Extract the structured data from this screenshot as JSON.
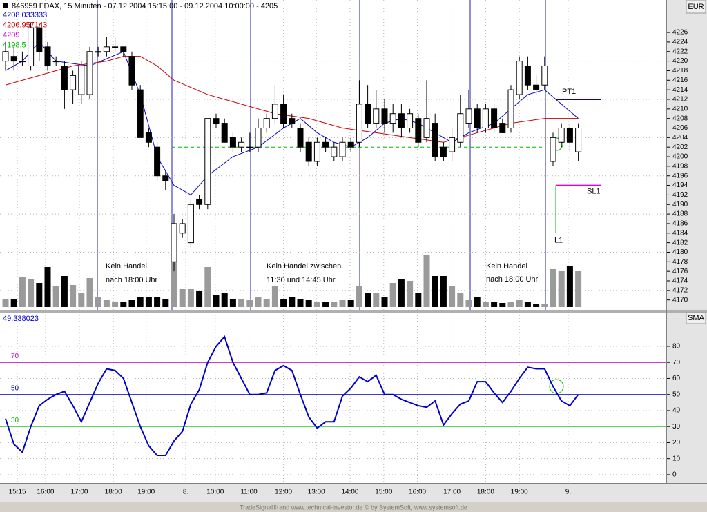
{
  "footer": "TradeSignal® and www.technical-investor.de © by SystemSoft, www.systemsoft.de",
  "chart_data": [
    {
      "type": "candlestick",
      "title": "846959 FDAX, 15 Minuten - 07.12.2004 15:15:00 - 09.12.2004 10:00:00 - 4205",
      "axis_label": "EUR",
      "info": [
        {
          "label": "4208.033333",
          "color": "#0000cc"
        },
        {
          "label": "4206.957143",
          "color": "#cc0000"
        },
        {
          "label": "4209",
          "color": "#cc00cc"
        },
        {
          "label": "4198.5",
          "color": "#00bb00"
        }
      ],
      "annotations": [
        "Kein Handel",
        "nach 18:00 Uhr",
        "Kein Handel zwischen",
        "11:30 und 14:45 Uhr",
        "Kein Handel",
        "nach 18:00 Uhr"
      ],
      "open": [
        4220,
        4221,
        4220,
        4219,
        4227,
        4223,
        4220,
        4219,
        4214,
        4213,
        4213,
        4222,
        4222,
        4223,
        4223,
        4221,
        4214,
        4205,
        4202,
        4196,
        4178,
        4184,
        4182,
        4191,
        4190,
        4208,
        4207,
        4204,
        4202,
        4202,
        4202,
        4206,
        4208,
        4211,
        4208,
        4206,
        4203,
        4199,
        4203,
        4200,
        4200,
        4203,
        4203,
        4211,
        4207,
        4210,
        4207,
        4209,
        4206,
        4208,
        4204,
        4207,
        4202,
        4201,
        4203,
        4207,
        4210,
        4206,
        4210,
        4207,
        4206,
        4213,
        4219,
        4215,
        4215,
        4199,
        4203,
        4206,
        4201
      ],
      "high": [
        4224,
        4223,
        4222,
        4228,
        4228,
        4224,
        4221,
        4220,
        4218,
        4220,
        4223,
        4223,
        4225,
        4225,
        4223,
        4222,
        4215,
        4206,
        4203,
        4197,
        4188,
        4187,
        4191,
        4192,
        4208,
        4209,
        4208,
        4205,
        4204,
        4205,
        4208,
        4209,
        4215,
        4213,
        4209,
        4207,
        4204,
        4204,
        4204,
        4203,
        4204,
        4204,
        4216,
        4215,
        4214,
        4212,
        4211,
        4211,
        4210,
        4209,
        4216,
        4209,
        4203,
        4206,
        4213,
        4214,
        4211,
        4211,
        4211,
        4208,
        4215,
        4221,
        4221,
        4217,
        4221,
        4205,
        4207,
        4207,
        4207
      ],
      "low": [
        4218,
        4218,
        4219,
        4218,
        4220,
        4218,
        4219,
        4210,
        4211,
        4211,
        4212,
        4221,
        4221,
        4222,
        4221,
        4214,
        4204,
        4202,
        4195,
        4193,
        4176,
        4183,
        4181,
        4189,
        4189,
        4206,
        4203,
        4201,
        4201,
        4201,
        4201,
        4205,
        4207,
        4206,
        4206,
        4201,
        4198,
        4198,
        4201,
        4199,
        4199,
        4201,
        4202,
        4206,
        4206,
        4205,
        4205,
        4204,
        4205,
        4202,
        4203,
        4199,
        4199,
        4199,
        4202,
        4206,
        4205,
        4205,
        4205,
        4205,
        4205,
        4212,
        4214,
        4213,
        4214,
        4198,
        4202,
        4201,
        4199
      ],
      "close": [
        4222,
        4220,
        4220,
        4227,
        4222,
        4219,
        4220,
        4214,
        4217,
        4219,
        4222,
        4222,
        4223,
        4223,
        4222,
        4215,
        4204,
        4203,
        4196,
        4195,
        4186,
        4186,
        4190,
        4190,
        4208,
        4207,
        4203,
        4202,
        4203,
        4202,
        4206,
        4208,
        4211,
        4207,
        4207,
        4202,
        4199,
        4203,
        4202,
        4202,
        4203,
        4202,
        4211,
        4207,
        4210,
        4207,
        4209,
        4206,
        4209,
        4203,
        4208,
        4200,
        4200,
        4204,
        4209,
        4210,
        4206,
        4210,
        4206,
        4205,
        4214,
        4220,
        4215,
        4214,
        4219,
        4204,
        4206,
        4203,
        4206
      ],
      "volume": [
        12,
        12,
        44,
        40,
        35,
        58,
        30,
        45,
        32,
        20,
        42,
        15,
        10,
        8,
        8,
        10,
        14,
        14,
        15,
        12,
        75,
        26,
        26,
        24,
        58,
        18,
        20,
        12,
        12,
        10,
        15,
        12,
        30,
        12,
        14,
        12,
        10,
        8,
        8,
        8,
        10,
        10,
        30,
        20,
        20,
        15,
        35,
        40,
        38,
        20,
        75,
        45,
        45,
        30,
        20,
        10,
        15,
        8,
        8,
        6,
        8,
        10,
        8,
        5,
        5,
        55,
        52,
        60,
        52
      ],
      "series": [
        {
          "color": "#0000cc",
          "x": [
            0,
            2,
            4,
            6,
            10,
            14,
            16,
            18,
            20,
            22,
            24,
            27,
            30,
            33,
            35,
            37,
            39,
            41,
            43,
            45,
            47,
            49,
            51,
            53,
            55,
            58,
            60,
            62,
            64,
            66,
            68
          ],
          "values": [
            4218,
            4220,
            4224,
            4220,
            4219,
            4222,
            4213,
            4200,
            4194,
            4192,
            4196,
            4200,
            4202,
            4206,
            4208,
            4205,
            4203,
            4202,
            4204,
            4207,
            4208,
            4207,
            4205,
            4203,
            4205,
            4207,
            4210,
            4213,
            4214,
            4211,
            4208
          ]
        },
        {
          "color": "#cc0000",
          "x": [
            0,
            4,
            8,
            12,
            14,
            16,
            18,
            20,
            24,
            28,
            32,
            36,
            40,
            44,
            48,
            52,
            56,
            60,
            64,
            68
          ],
          "values": [
            4215,
            4217,
            4219,
            4220,
            4221,
            4221,
            4219,
            4216,
            4213,
            4211,
            4209,
            4208,
            4206,
            4205,
            4204,
            4203,
            4205,
            4207,
            4208,
            4208
          ]
        }
      ],
      "entry_line": {
        "value": 4202,
        "color": "#00bb00"
      },
      "levels": [
        {
          "label": "PT1",
          "value": 4212,
          "color": "#0000cc"
        },
        {
          "label": "SL1",
          "value": 4194,
          "color": "#e000e0"
        },
        {
          "label": "L1",
          "value": 4184,
          "color": "#00bb00"
        }
      ],
      "ylim": [
        4167.5,
        4232.8
      ],
      "yticks": [
        4170,
        4172,
        4174,
        4176,
        4178,
        4180,
        4182,
        4184,
        4186,
        4188,
        4190,
        4192,
        4194,
        4196,
        4198,
        4200,
        4202,
        4204,
        4206,
        4208,
        4210,
        4212,
        4214,
        4216,
        4218,
        4220,
        4222,
        4224,
        4226
      ],
      "grid": true
    },
    {
      "type": "line",
      "axis_label": "SMA",
      "last_value": "49.338023",
      "color": "#0000cc",
      "values": [
        35,
        19,
        14,
        30,
        43,
        47,
        50,
        52,
        43,
        33,
        45,
        57,
        66,
        65,
        60,
        45,
        30,
        18,
        12,
        12,
        21,
        27,
        44,
        53,
        70,
        80,
        86,
        70,
        60,
        50,
        50,
        51,
        65,
        68,
        65,
        50,
        36,
        29,
        33,
        33,
        49,
        54,
        61,
        58,
        62,
        50,
        50,
        47,
        45,
        43,
        42,
        46,
        31,
        38,
        44,
        46,
        58,
        58,
        51,
        45,
        52,
        60,
        67,
        66,
        66,
        55,
        46,
        43,
        50
      ],
      "levels": [
        {
          "value": 70,
          "color": "#c000c0"
        },
        {
          "value": 50,
          "color": "#0000cc"
        },
        {
          "value": 30,
          "color": "#00bb00"
        }
      ],
      "ylim": [
        -5.2,
        101.5
      ],
      "yticks": [
        0,
        10,
        20,
        30,
        40,
        50,
        60,
        70,
        80
      ],
      "xticks": [
        {
          "value": 1.4,
          "label": "15:15"
        },
        {
          "value": 4.75,
          "label": "16:00"
        },
        {
          "value": 8.77,
          "label": "17:00"
        },
        {
          "value": 12.8,
          "label": "18:00"
        },
        {
          "value": 16.7,
          "label": "19:00"
        },
        {
          "value": 21.4,
          "label": "8."
        },
        {
          "value": 24.9,
          "label": "10:00"
        },
        {
          "value": 28.9,
          "label": "11:00"
        },
        {
          "value": 33,
          "label": "12:00"
        },
        {
          "value": 36.9,
          "label": "13:00"
        },
        {
          "value": 40.9,
          "label": "14:00"
        },
        {
          "value": 44.9,
          "label": "15:00"
        },
        {
          "value": 48.9,
          "label": "16:00"
        },
        {
          "value": 53,
          "label": "17:00"
        },
        {
          "value": 57,
          "label": "18:00"
        },
        {
          "value": 61,
          "label": "19:00"
        },
        {
          "value": 66.8,
          "label": "9."
        }
      ],
      "grid": true
    }
  ]
}
